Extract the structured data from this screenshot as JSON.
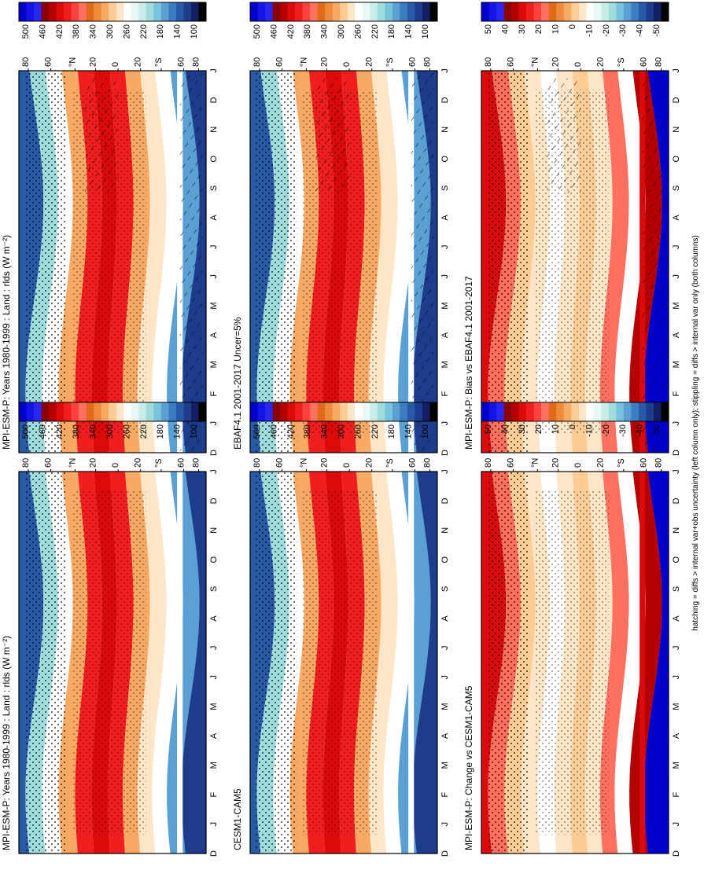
{
  "footnote": "hatching = diffs > internal var+obs uncertainty (left column only); stippling = diffs > internal var only (both columns)",
  "lat_labels": [
    "80",
    "60",
    "°N",
    "20",
    "0",
    "20",
    "°S",
    "60",
    "80"
  ],
  "month_labels": [
    "D",
    "J",
    "F",
    "M",
    "A",
    "M",
    "J",
    "J",
    "A",
    "S",
    "O",
    "N",
    "D",
    "J"
  ],
  "panels": [
    {
      "id": "p1",
      "title": "MPI-ESM-P: Years 1980-1999 : Land : rlds (W m⁻²)",
      "kind": "abs",
      "hatch": true
    },
    {
      "id": "p2",
      "title": "MPI-ESM-P: Years 1980-1999 : Land : rlds (W m⁻²)",
      "kind": "abs",
      "hatch": false
    },
    {
      "id": "p3",
      "title": "EBAF4.1 2001-2017 Uncer=5%",
      "kind": "abs",
      "hatch": true
    },
    {
      "id": "p4",
      "title": "CESM1-CAM5",
      "kind": "abs",
      "hatch": false
    },
    {
      "id": "p5",
      "title": "MPI-ESM-P: Bias vs EBAF4.1 2001-2017",
      "kind": "diff",
      "hatch": true
    },
    {
      "id": "p6",
      "title": "MPI-ESM-P: Change vs CESM1-CAM5",
      "kind": "diff",
      "hatch": false
    }
  ],
  "colorbars": {
    "abs": {
      "labels": [
        "500",
        "460",
        "420",
        "380",
        "340",
        "300",
        "260",
        "220",
        "180",
        "140",
        "100"
      ],
      "colors": [
        "#0000cd",
        "#1414e6",
        "#2828f0",
        "#8b0000",
        "#b40000",
        "#dc0a0a",
        "#f01e1e",
        "#ff4040",
        "#ff7060",
        "#e06a1a",
        "#ee8a3c",
        "#f8aa64",
        "#fccc96",
        "#fde6c8",
        "#ffffff",
        "#e8f8f6",
        "#c8ece8",
        "#a0dcdc",
        "#78c4dc",
        "#5aa0d2",
        "#3c7cc0",
        "#285aa8",
        "#1e3c8c",
        "#141e64",
        "#000000"
      ]
    },
    "diff": {
      "labels": [
        "50",
        "40",
        "30",
        "20",
        "10",
        "0",
        "-10",
        "-20",
        "-30",
        "-40",
        "-50"
      ],
      "colors": [
        "#0000cd",
        "#1414e6",
        "#2828f0",
        "#8b0000",
        "#b40000",
        "#dc0a0a",
        "#f01e1e",
        "#ff4040",
        "#ff7060",
        "#e06a1a",
        "#ee8a3c",
        "#f8aa64",
        "#fccc96",
        "#fde6c8",
        "#ffffff",
        "#e8f8f6",
        "#c8ece8",
        "#a0dcdc",
        "#78c4dc",
        "#5aa0d2",
        "#3c7cc0",
        "#285aa8",
        "#1e3c8c",
        "#141e64",
        "#000000"
      ]
    }
  }
}
